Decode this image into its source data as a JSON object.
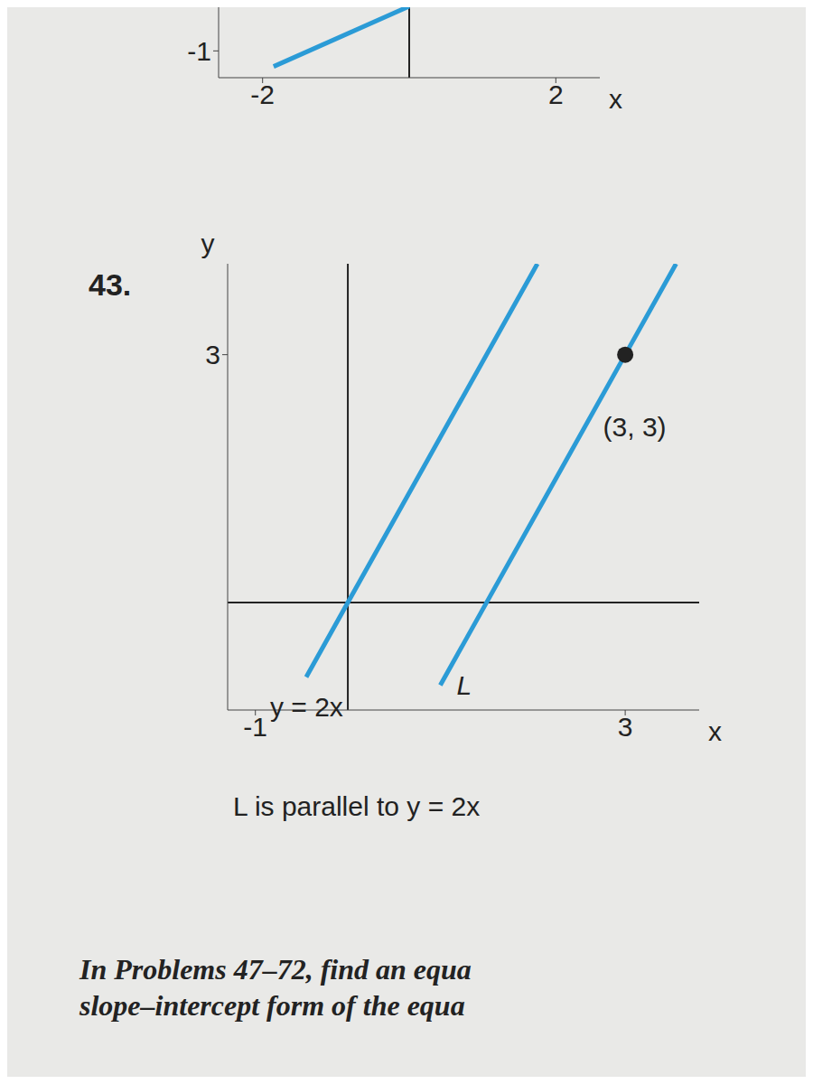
{
  "problem_number": "43.",
  "chart_data": [
    {
      "type": "line",
      "xlim": [
        -2.6,
        2.6
      ],
      "ylim": [
        -1.6,
        0.1
      ],
      "xticks": [
        -2,
        2
      ],
      "yticks": [
        -1
      ],
      "x_label": "x",
      "series": [
        {
          "color": "#2b9bd6",
          "x": [
            -1.85,
            0
          ],
          "values": [
            -1.35,
            0
          ]
        }
      ]
    },
    {
      "type": "line",
      "xlim": [
        -1.3,
        3.8
      ],
      "ylim": [
        -1.3,
        4.1
      ],
      "xticks": [
        -1,
        3
      ],
      "yticks": [
        3
      ],
      "x_label": "x",
      "y_label": "y",
      "caption": "L is parallel to y = 2x",
      "series": [
        {
          "name": "y = 2x",
          "color": "#2b9bd6",
          "x": [
            -0.45,
            0,
            2.05
          ],
          "values": [
            -0.9,
            0,
            4.1
          ]
        },
        {
          "name": "L",
          "color": "#2b9bd6",
          "x": [
            1.0,
            3,
            3.55
          ],
          "values": [
            -1.0,
            3,
            4.1
          ]
        }
      ],
      "points": [
        {
          "x": 3,
          "y": 3,
          "label": "(3, 3)",
          "color": "#222222"
        }
      ]
    }
  ],
  "footer": [
    "In Problems 47–72, find an equa",
    "slope–intercept form of the equa"
  ]
}
